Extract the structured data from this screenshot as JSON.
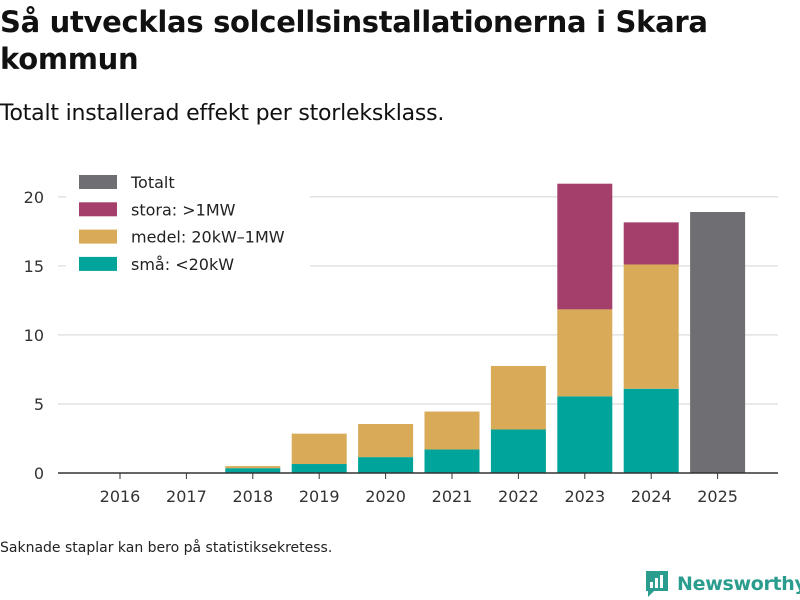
{
  "title": "Så utvecklas solcellsinstallationerna i Skara kommun",
  "subtitle": "Totalt installerad effekt per storleksklass.",
  "footnote": "Saknade staplar kan bero på statistiksekretess.",
  "brand": {
    "name": "Newsworthy",
    "color": "#2a9d8f"
  },
  "chart_data": {
    "type": "bar",
    "stacked": true,
    "categories": [
      "2016",
      "2017",
      "2018",
      "2019",
      "2020",
      "2021",
      "2022",
      "2023",
      "2024",
      "2025"
    ],
    "series": [
      {
        "name": "små: <20kW",
        "color": "#00a49a",
        "values": [
          0,
          0,
          0.35,
          0.65,
          1.15,
          1.7,
          3.15,
          5.55,
          6.1,
          null
        ]
      },
      {
        "name": "medel: 20kW–1MW",
        "color": "#d9ab58",
        "values": [
          0,
          0,
          0.15,
          2.2,
          2.4,
          2.75,
          4.6,
          6.3,
          9.0,
          null
        ]
      },
      {
        "name": "stora: >1MW",
        "color": "#a43f6c",
        "values": [
          0,
          0,
          0,
          0,
          0,
          0,
          0,
          9.1,
          3.05,
          null
        ]
      },
      {
        "name": "Totalt",
        "color": "#6e6e73",
        "values": [
          null,
          null,
          null,
          null,
          null,
          null,
          null,
          null,
          null,
          18.9
        ]
      }
    ],
    "legend": [
      "Totalt",
      "stora: >1MW",
      "medel: 20kW–1MW",
      "små: <20kW"
    ],
    "yticks": [
      0,
      5,
      10,
      15,
      20
    ],
    "ylim": [
      0,
      21
    ],
    "xlabel": "",
    "ylabel": "",
    "legend_position": "top-left",
    "grid": true
  }
}
